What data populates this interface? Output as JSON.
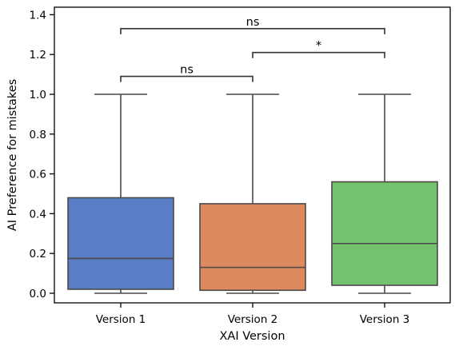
{
  "chart_data": {
    "type": "box",
    "xlabel": "XAI Version",
    "ylabel": "AI Preference for mistakes",
    "ylim": [
      -0.04,
      1.43
    ],
    "yticks": [
      0.0,
      0.2,
      0.4,
      0.6,
      0.8,
      1.0,
      1.2,
      1.4
    ],
    "ytick_labels": [
      "0.0",
      "0.2",
      "0.4",
      "0.6",
      "0.8",
      "1.0",
      "1.2",
      "1.4"
    ],
    "grid": false,
    "categories": [
      "Version 1",
      "Version 2",
      "Version 3"
    ],
    "boxes": [
      {
        "category": "Version 1",
        "min": 0.0,
        "q1": 0.02,
        "median": 0.175,
        "q3": 0.48,
        "max": 1.0,
        "color": "#5a7ec5"
      },
      {
        "category": "Version 2",
        "min": 0.0,
        "q1": 0.015,
        "median": 0.13,
        "q3": 0.45,
        "max": 1.0,
        "color": "#dd8a5e"
      },
      {
        "category": "Version 3",
        "min": 0.0,
        "q1": 0.04,
        "median": 0.25,
        "q3": 0.56,
        "max": 1.0,
        "color": "#73c26e"
      }
    ],
    "annotations": [
      {
        "from": 0,
        "to": 2,
        "label": "ns",
        "y": 1.33
      },
      {
        "from": 1,
        "to": 2,
        "label": "*",
        "y": 1.21
      },
      {
        "from": 0,
        "to": 1,
        "label": "ns",
        "y": 1.09
      }
    ]
  }
}
